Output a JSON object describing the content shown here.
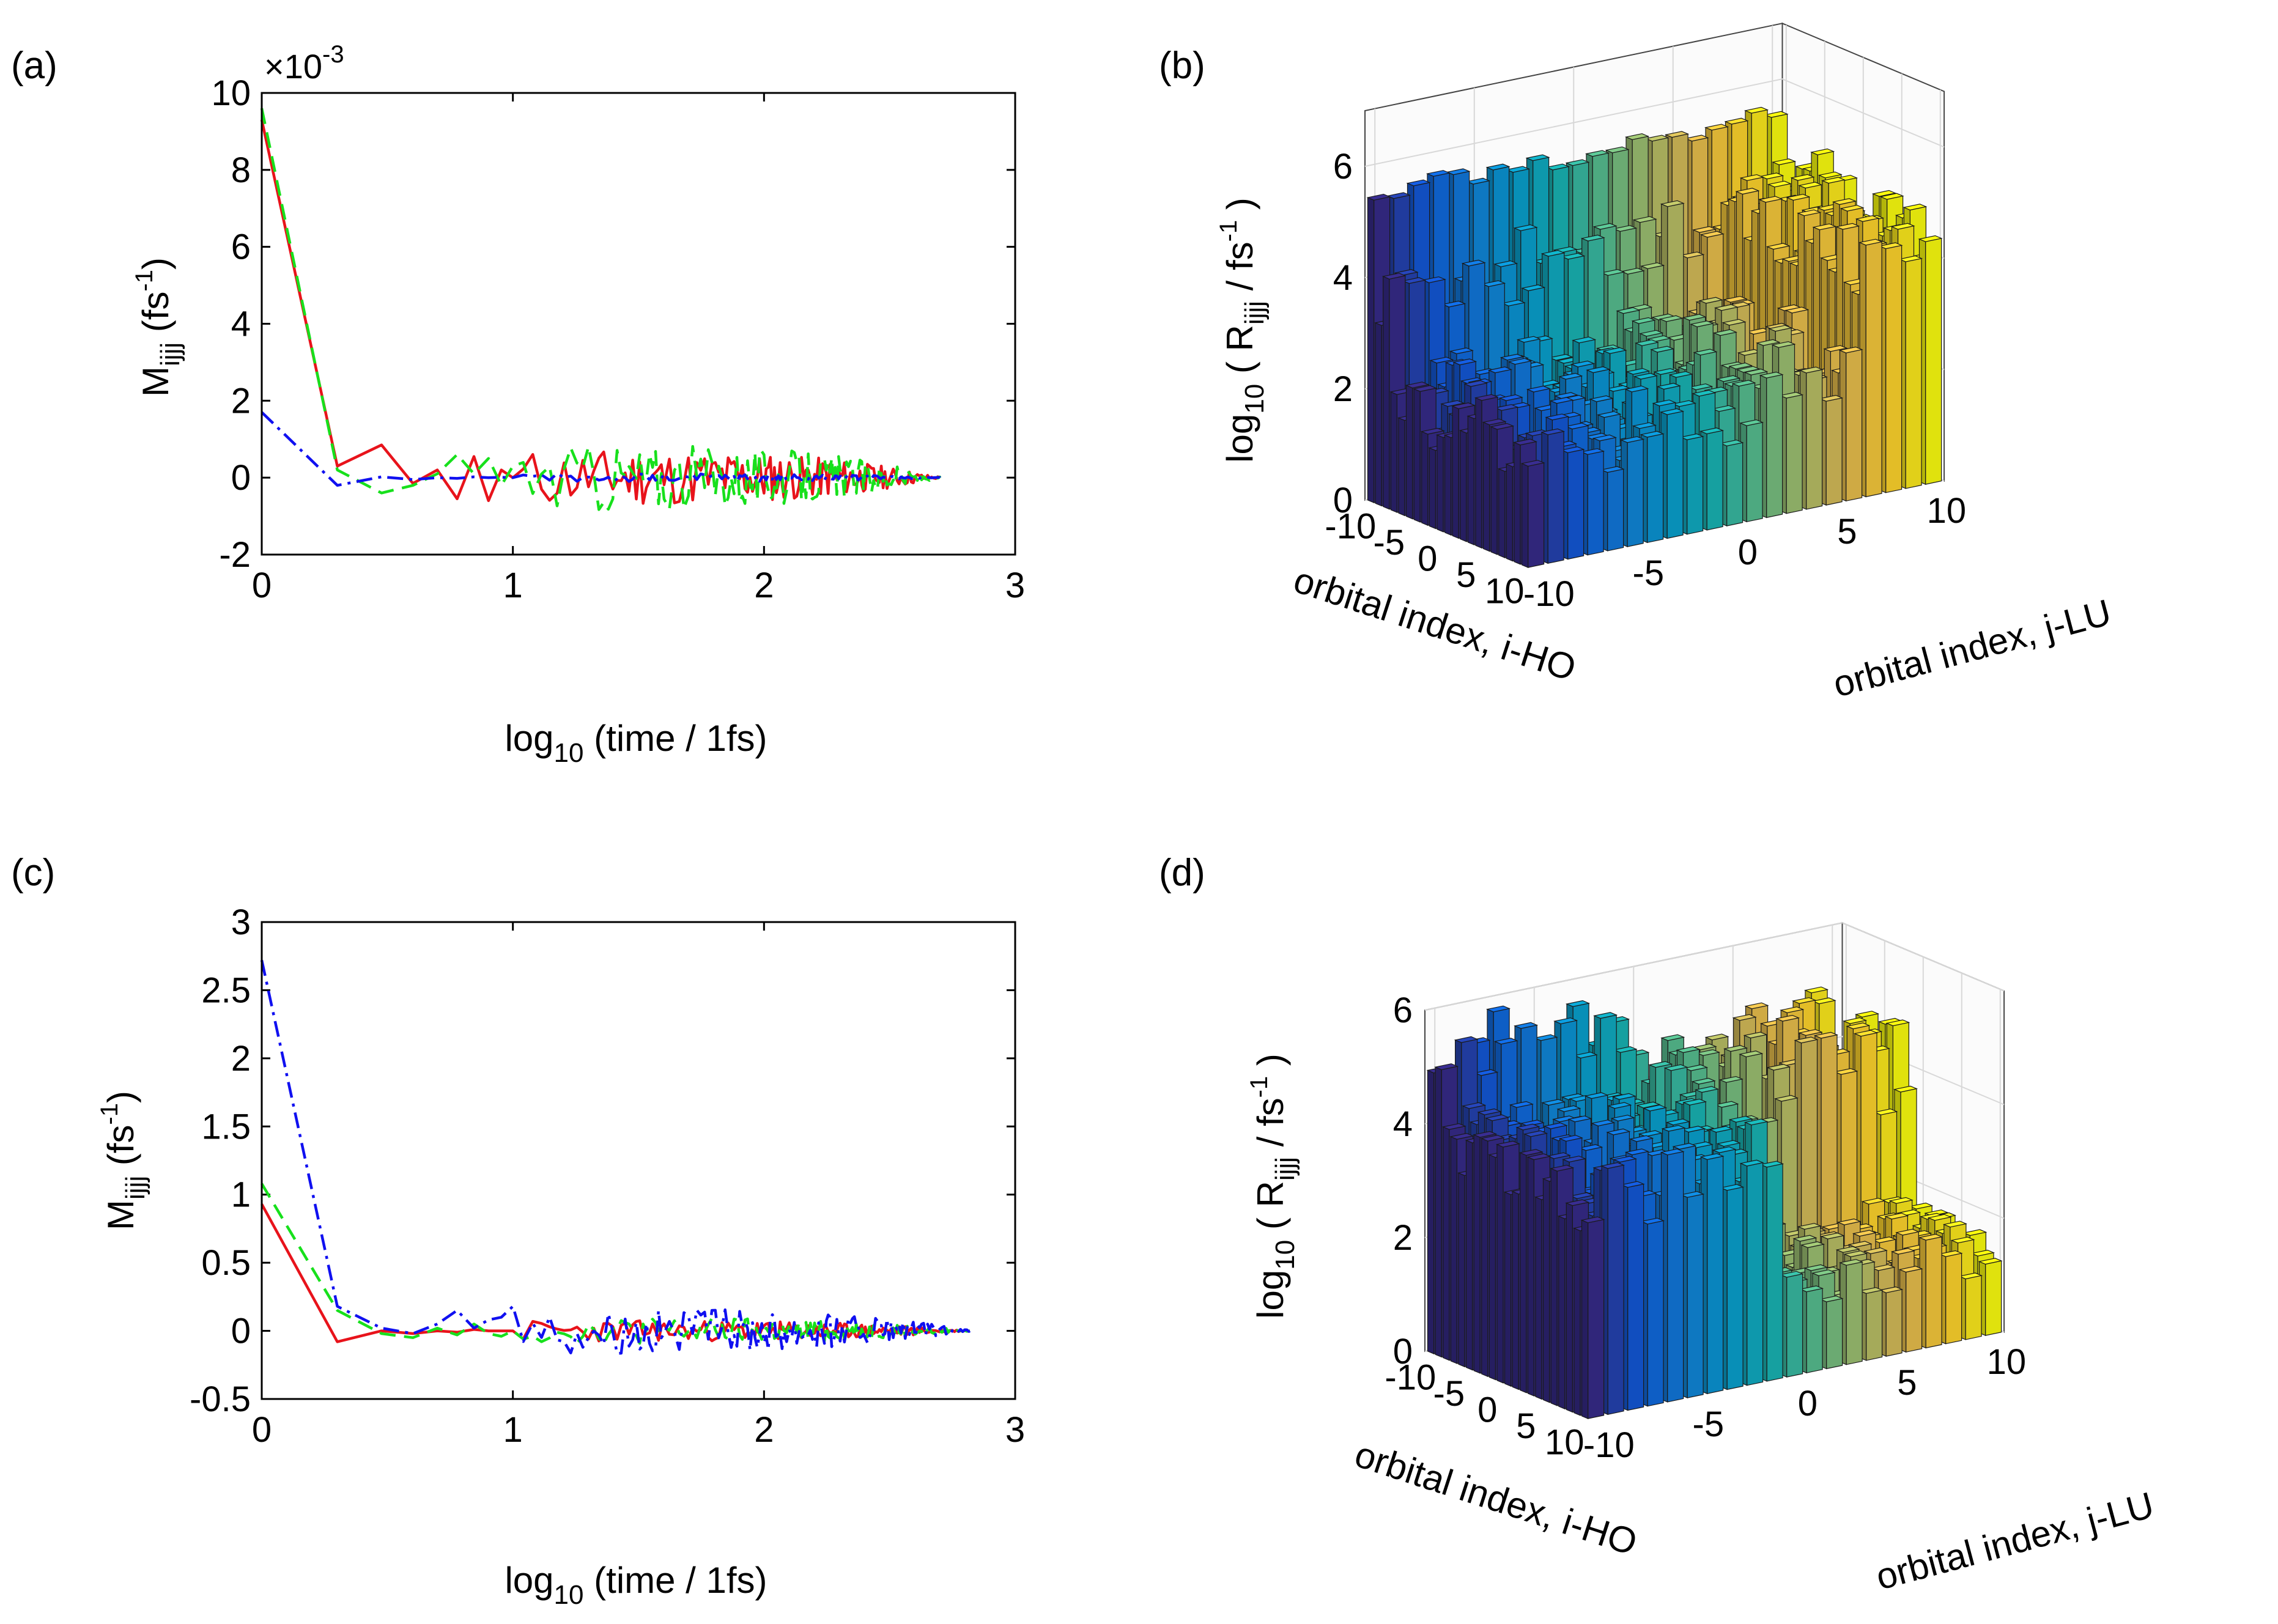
{
  "figure": {
    "panel_labels": [
      "(a)",
      "(b)",
      "(c)",
      "(d)"
    ]
  },
  "chart_data": [
    {
      "panel": "(a)",
      "type": "line",
      "title": "",
      "xlabel_main": "log",
      "xlabel_sub": "10",
      "xlabel_rest": " (time / 1fs)",
      "ylabel_main": "M",
      "ylabel_sub": "ijjj",
      "ylabel_rest": " (fs",
      "ylabel_sup": "-1",
      "ylabel_close": ")",
      "exponent_label": "×10",
      "exponent_sup": "-3",
      "xlim": [
        0,
        3
      ],
      "ylim": [
        -2,
        10
      ],
      "xticks": [
        0,
        1,
        2,
        3
      ],
      "xtick_labels": [
        "0",
        "1",
        "2",
        "3"
      ],
      "yticks": [
        -2,
        0,
        2,
        4,
        6,
        8,
        10
      ],
      "ytick_labels": [
        "-2",
        "0",
        "2",
        "4",
        "6",
        "8",
        "10"
      ],
      "series": [
        {
          "name": "red solid",
          "color": "#e8131b",
          "dash": "solid",
          "x": [
            0,
            0.301,
            0.477,
            0.602,
            0.699,
            0.778,
            0.845,
            0.903,
            0.954,
            1.0
          ],
          "y": [
            9.3,
            0.3,
            0.85,
            -0.15,
            0.2,
            -0.55,
            0.55,
            -0.6,
            0.2,
            0.0
          ],
          "noise_amp": 0.75
        },
        {
          "name": "green dashed",
          "color": "#17e01c",
          "dash": "dashed",
          "x": [
            0,
            0.301,
            0.477,
            0.602,
            0.699,
            0.778,
            0.845,
            0.903,
            0.954,
            1.0
          ],
          "y": [
            9.6,
            0.2,
            -0.4,
            -0.2,
            0.1,
            0.6,
            0.1,
            0.5,
            -0.2,
            0.3
          ],
          "noise_amp": 0.9
        },
        {
          "name": "blue dash-dot",
          "color": "#1010f0",
          "dash": "dashdot",
          "x": [
            0,
            0.301,
            0.477,
            0.602,
            0.699,
            0.778,
            0.845,
            0.903,
            0.954,
            1.0
          ],
          "y": [
            1.7,
            -0.2,
            0.02,
            -0.05,
            0.0,
            -0.02,
            0.02,
            0.0,
            0.01,
            0.0
          ],
          "noise_amp": 0.12
        }
      ],
      "x_end": 2.7
    },
    {
      "panel": "(c)",
      "type": "line",
      "title": "",
      "xlabel_main": "log",
      "xlabel_sub": "10",
      "xlabel_rest": " (time / 1fs)",
      "ylabel_main": "M",
      "ylabel_sub": "ijjj",
      "ylabel_rest": " (fs",
      "ylabel_sup": "-1",
      "ylabel_close": ")",
      "xlim": [
        0,
        3
      ],
      "ylim": [
        -0.5,
        3
      ],
      "xticks": [
        0,
        1,
        2,
        3
      ],
      "xtick_labels": [
        "0",
        "1",
        "2",
        "3"
      ],
      "yticks": [
        -0.5,
        0,
        0.5,
        1,
        1.5,
        2,
        2.5,
        3
      ],
      "ytick_labels": [
        "-0.5",
        "0",
        "0.5",
        "1",
        "1.5",
        "2",
        "2.5",
        "3"
      ],
      "series": [
        {
          "name": "red solid",
          "color": "#e8131b",
          "dash": "solid",
          "x": [
            0,
            0.301,
            0.477,
            0.602,
            0.699,
            0.778,
            0.845,
            0.903,
            0.954,
            1.0
          ],
          "y": [
            0.93,
            -0.08,
            0.0,
            -0.02,
            0.0,
            -0.01,
            0.01,
            0.0,
            0.0,
            0.0
          ],
          "noise_amp": 0.08
        },
        {
          "name": "green dashed",
          "color": "#17e01c",
          "dash": "dashed",
          "x": [
            0,
            0.301,
            0.477,
            0.602,
            0.699,
            0.778,
            0.845,
            0.903,
            0.954,
            1.0
          ],
          "y": [
            1.08,
            0.15,
            -0.02,
            -0.05,
            0.02,
            -0.03,
            0.05,
            -0.02,
            -0.04,
            0.0
          ],
          "noise_amp": 0.1
        },
        {
          "name": "blue dash-dot",
          "color": "#1010f0",
          "dash": "dashdot",
          "x": [
            0,
            0.301,
            0.477,
            0.602,
            0.699,
            0.778,
            0.845,
            0.903,
            0.954,
            1.0
          ],
          "y": [
            2.72,
            0.18,
            0.02,
            -0.02,
            0.05,
            0.15,
            0.02,
            0.08,
            0.1,
            0.18
          ],
          "noise_amp": 0.17
        }
      ],
      "x_end": 2.82
    },
    {
      "panel": "(b)",
      "type": "bar3d",
      "zlabel_main": "log",
      "zlabel_sub": "10",
      "zlabel_open": " ( R",
      "zlabel_sub2": "ijjj",
      "zlabel_rest": " / fs",
      "zlabel_sup": "-1",
      "zlabel_close": " )",
      "xlabel": "orbital index, i-HO",
      "ylabel": "orbital index, j-LU",
      "xticks": [
        -10,
        -5,
        0,
        5,
        10
      ],
      "yticks": [
        -10,
        -5,
        0,
        5,
        10
      ],
      "zticks": [
        0,
        2,
        4,
        6
      ],
      "zlim": [
        0,
        7
      ],
      "i_range": [
        -10,
        10
      ],
      "j_range": [
        -10,
        10
      ],
      "pattern": "high row at i-HO=-10 (about 5.5) and high edge at j-LU=10 (about 4.5-5); interior about 1.5-3"
    },
    {
      "panel": "(d)",
      "type": "bar3d",
      "zlabel_main": "log",
      "zlabel_sub": "10",
      "zlabel_open": " ( R",
      "zlabel_sub2": "ijjj",
      "zlabel_rest": " / fs",
      "zlabel_sup": "-1",
      "zlabel_close": " )",
      "xlabel": "orbital index, i-HO",
      "ylabel": "orbital index, j-LU",
      "xticks": [
        -10,
        -5,
        0,
        5,
        10
      ],
      "yticks": [
        -10,
        -5,
        0,
        5,
        10
      ],
      "zticks": [
        0,
        2,
        4,
        6
      ],
      "zlim": [
        0,
        6
      ],
      "i_range": [
        -10,
        10
      ],
      "j_range": [
        -10,
        10
      ],
      "pattern": "high block for j-LU<0 (about 4.5-5) and for i-HO<0; low region about 1-2 for i-HO>0 and j-LU>0"
    }
  ]
}
